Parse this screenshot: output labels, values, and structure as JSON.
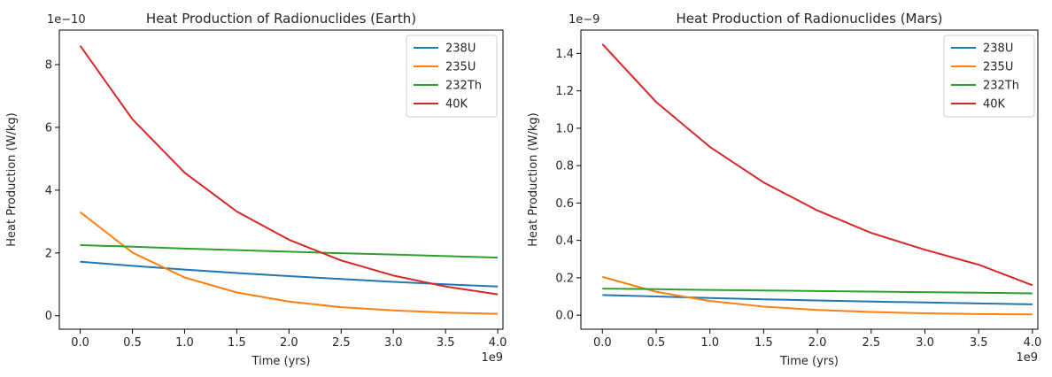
{
  "chart_data": [
    {
      "type": "line",
      "title": "Heat Production of Radionuclides (Earth)",
      "xlabel": "Time (yrs)",
      "ylabel": "Heat Production (W/kg)",
      "x_offset_label": "1e9",
      "y_offset_label": "1e−10",
      "xlim": [
        -0.2,
        4.05
      ],
      "ylim": [
        -0.43,
        9.1
      ],
      "x_ticks": [
        0.0,
        0.5,
        1.0,
        1.5,
        2.0,
        2.5,
        3.0,
        3.5,
        4.0
      ],
      "x_tick_labels": [
        "0.0",
        "0.5",
        "1.0",
        "1.5",
        "2.0",
        "2.5",
        "3.0",
        "3.5",
        "4.0"
      ],
      "y_ticks": [
        0,
        2,
        4,
        6,
        8
      ],
      "y_tick_labels": [
        "0",
        "2",
        "4",
        "6",
        "8"
      ],
      "grid": false,
      "legend_position": "top-right",
      "x": [
        0.0,
        0.5,
        1.0,
        1.5,
        2.0,
        2.5,
        3.0,
        3.5,
        4.0
      ],
      "series": [
        {
          "name": "238U",
          "color": "#1f77b4",
          "values": [
            1.72,
            1.59,
            1.47,
            1.36,
            1.26,
            1.17,
            1.08,
            1.0,
            0.93
          ]
        },
        {
          "name": "235U",
          "color": "#ff7f0e",
          "values": [
            3.3,
            2.01,
            1.22,
            0.74,
            0.45,
            0.27,
            0.17,
            0.1,
            0.06
          ]
        },
        {
          "name": "232Th",
          "color": "#2ca02c",
          "values": [
            2.25,
            2.2,
            2.14,
            2.09,
            2.04,
            1.99,
            1.95,
            1.9,
            1.85
          ]
        },
        {
          "name": "40K",
          "color": "#d62728",
          "values": [
            8.6,
            6.26,
            4.56,
            3.32,
            2.42,
            1.76,
            1.28,
            0.93,
            0.68
          ]
        }
      ]
    },
    {
      "type": "line",
      "title": "Heat Production of Radionuclides (Mars)",
      "xlabel": "Time (yrs)",
      "ylabel": "Heat Production (W/kg)",
      "x_offset_label": "1e9",
      "y_offset_label": "1e−9",
      "xlim": [
        -0.2,
        4.05
      ],
      "ylim": [
        -0.075,
        1.525
      ],
      "x_ticks": [
        0.0,
        0.5,
        1.0,
        1.5,
        2.0,
        2.5,
        3.0,
        3.5,
        4.0
      ],
      "x_tick_labels": [
        "0.0",
        "0.5",
        "1.0",
        "1.5",
        "2.0",
        "2.5",
        "3.0",
        "3.5",
        "4.0"
      ],
      "y_ticks": [
        0.0,
        0.2,
        0.4,
        0.6,
        0.8,
        1.0,
        1.2,
        1.4
      ],
      "y_tick_labels": [
        "0.0",
        "0.2",
        "0.4",
        "0.6",
        "0.8",
        "1.0",
        "1.2",
        "1.4"
      ],
      "grid": false,
      "legend_position": "top-right",
      "x": [
        0.0,
        0.5,
        1.0,
        1.5,
        2.0,
        2.5,
        3.0,
        3.5,
        4.0
      ],
      "series": [
        {
          "name": "238U",
          "color": "#1f77b4",
          "values": [
            0.108,
            0.1,
            0.092,
            0.085,
            0.079,
            0.073,
            0.068,
            0.063,
            0.058
          ]
        },
        {
          "name": "235U",
          "color": "#ff7f0e",
          "values": [
            0.205,
            0.125,
            0.076,
            0.046,
            0.028,
            0.017,
            0.01,
            0.006,
            0.004
          ]
        },
        {
          "name": "232Th",
          "color": "#2ca02c",
          "values": [
            0.142,
            0.139,
            0.135,
            0.132,
            0.129,
            0.126,
            0.123,
            0.12,
            0.117
          ]
        },
        {
          "name": "40K",
          "color": "#d62728",
          "values": [
            1.45,
            1.14,
            0.9,
            0.71,
            0.56,
            0.44,
            0.35,
            0.27,
            0.16
          ]
        }
      ]
    }
  ]
}
